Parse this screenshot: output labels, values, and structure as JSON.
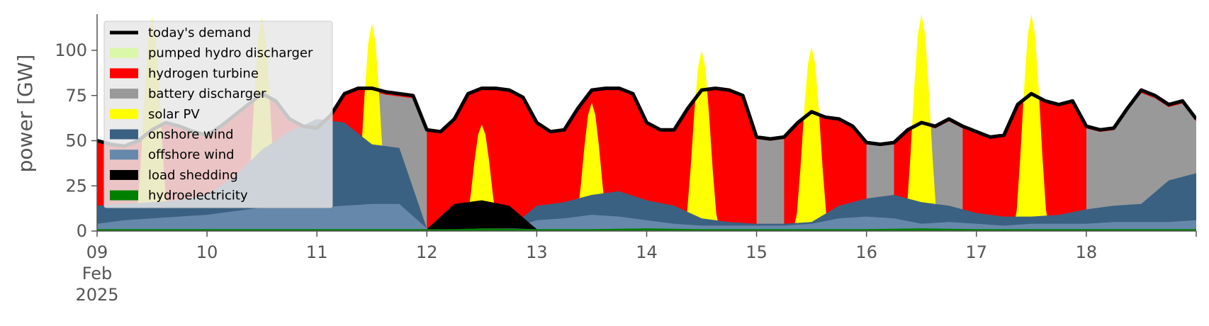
{
  "chart_data": {
    "type": "area",
    "ylabel": "power [GW]",
    "ylim": [
      0,
      120
    ],
    "yticks": [
      0,
      25,
      50,
      75,
      100
    ],
    "xlim": [
      "2025-02-09T00:00",
      "2025-02-19T00:00"
    ],
    "xtick_labels": [
      "09",
      "10",
      "11",
      "12",
      "13",
      "14",
      "15",
      "16",
      "17",
      "18"
    ],
    "xtick_month": "Feb",
    "xtick_year": "2025",
    "legend_position": "top-left",
    "x_hours": [
      0,
      6,
      12,
      18,
      24,
      30,
      36,
      42,
      48,
      54,
      60,
      66,
      72,
      78,
      84,
      90,
      96,
      102,
      108,
      114,
      120,
      126,
      132,
      138,
      144,
      150,
      156,
      162,
      168,
      174,
      180,
      186,
      192,
      198,
      204,
      210,
      216,
      222,
      228,
      234,
      240
    ],
    "series": [
      {
        "name": "hydroelectricity",
        "color": "#008000",
        "values": [
          1,
          1,
          1,
          1,
          1,
          1,
          1,
          1,
          1,
          1,
          1,
          1,
          1,
          1,
          1.5,
          1.5,
          1,
          1,
          1,
          1.5,
          1.5,
          1,
          1,
          1,
          1,
          1,
          1,
          1,
          1,
          1.5,
          1,
          1,
          1,
          1,
          1,
          1,
          1,
          1,
          1,
          1,
          1
        ]
      },
      {
        "name": "load shedding",
        "color": "#000000",
        "values": [
          0,
          0,
          0,
          0,
          0,
          0,
          0,
          0,
          0,
          0,
          0,
          0,
          0,
          0,
          0,
          0,
          0,
          0,
          0,
          0,
          0,
          0,
          0,
          0,
          0,
          0,
          0,
          0,
          0,
          0,
          0,
          0,
          0,
          0,
          0,
          0,
          0,
          0,
          0,
          0,
          0
        ]
      },
      {
        "name": "offshore wind",
        "color": "#6688aa",
        "values": [
          4,
          6,
          7,
          8,
          9,
          11,
          13,
          13,
          13,
          14,
          15,
          15,
          0,
          0,
          0,
          0,
          0,
          0,
          0,
          0,
          0,
          0,
          0,
          0,
          0,
          0,
          0,
          0,
          0,
          0,
          0,
          0,
          0,
          0,
          0,
          0,
          0,
          0,
          0,
          0,
          0
        ]
      },
      {
        "name": "onshore wind",
        "color": "#3b6182",
        "values": [
          14,
          15,
          16,
          17,
          20,
          30,
          45,
          45,
          42,
          33,
          32,
          32,
          0,
          0,
          0,
          0,
          0,
          0,
          0,
          0,
          0,
          0,
          0,
          0,
          0,
          0,
          0,
          0,
          0,
          0,
          0,
          0,
          0,
          0,
          0,
          0,
          0,
          0,
          0,
          0,
          0
        ]
      },
      {
        "name": "solar PV",
        "color": "#ffff00",
        "values": [
          0,
          0,
          0,
          0,
          0,
          0,
          0,
          0,
          0,
          0,
          0,
          0,
          0,
          0,
          0,
          0,
          0,
          0,
          0,
          0,
          0,
          0,
          0,
          0,
          0,
          0,
          0,
          0,
          0,
          0,
          0,
          0,
          0,
          0,
          0,
          0,
          0,
          0,
          0,
          0,
          0
        ]
      },
      {
        "name": "battery discharger",
        "color": "#999999",
        "values": [
          0,
          0,
          0,
          0,
          0,
          0,
          0,
          0,
          0,
          0,
          0,
          0,
          0,
          0,
          0,
          0,
          0,
          0,
          0,
          0,
          0,
          0,
          0,
          0,
          0,
          0,
          0,
          0,
          0,
          0,
          0,
          0,
          0,
          0,
          0,
          0,
          0,
          0,
          0,
          0,
          0
        ]
      },
      {
        "name": "hydrogen turbine",
        "color": "#ff0000",
        "values": [
          0,
          0,
          0,
          0,
          0,
          0,
          0,
          0,
          0,
          0,
          0,
          0,
          0,
          0,
          0,
          0,
          0,
          0,
          0,
          0,
          0,
          0,
          0,
          0,
          0,
          0,
          0,
          0,
          0,
          0,
          0,
          0,
          0,
          0,
          0,
          0,
          0,
          0,
          0,
          0,
          0
        ]
      },
      {
        "name": "pumped hydro discharger",
        "color": "#dbf7a8",
        "values": [
          0,
          0,
          0,
          0,
          0,
          0,
          0,
          0,
          0,
          0,
          0,
          0,
          0,
          0,
          0,
          0,
          0,
          0,
          0,
          0,
          0,
          0,
          0,
          0,
          0,
          0,
          0,
          0,
          0,
          0,
          0,
          0,
          0,
          0,
          0,
          0,
          0,
          0,
          0,
          0,
          0
        ]
      }
    ],
    "demand": {
      "name": "today's demand",
      "color": "#000000",
      "x_hours": [
        0,
        3,
        6,
        9,
        12,
        15,
        18,
        21,
        24,
        27,
        30,
        33,
        36,
        39,
        42,
        45,
        48,
        51,
        54,
        57,
        60,
        63,
        66,
        69,
        72,
        75,
        78,
        81,
        84,
        87,
        90,
        93,
        96,
        99,
        102,
        105,
        108,
        111,
        114,
        117,
        120,
        123,
        126,
        129,
        132,
        135,
        138,
        141,
        144,
        147,
        150,
        153,
        156,
        159,
        162,
        165,
        168,
        171,
        174,
        177,
        180,
        183,
        186,
        189,
        192,
        195,
        198,
        201,
        204,
        207,
        210,
        213,
        216,
        219,
        222,
        225,
        228,
        231,
        234,
        237,
        240
      ],
      "values": [
        50,
        48,
        47,
        50,
        56,
        60,
        58,
        55,
        53,
        58,
        64,
        70,
        76,
        72,
        62,
        58,
        57,
        64,
        76,
        79,
        79,
        77,
        76,
        75,
        56,
        55,
        62,
        76,
        79,
        79,
        78,
        74,
        60,
        55,
        56,
        68,
        78,
        79,
        79,
        76,
        60,
        56,
        56,
        68,
        78,
        79,
        78,
        75,
        52,
        51,
        52,
        60,
        66,
        63,
        62,
        58,
        49,
        48,
        49,
        56,
        60,
        58,
        62,
        58,
        55,
        52,
        53,
        70,
        76,
        72,
        70,
        72,
        58,
        56,
        57,
        68,
        78,
        75,
        70,
        72,
        62
      ]
    },
    "layers": [
      {
        "name": "hydroelectricity",
        "color": "#008000",
        "x": [
          0,
          24,
          48,
          60,
          72,
          84,
          96,
          108,
          120,
          132,
          144,
          156,
          168,
          180,
          192,
          204,
          216,
          228,
          240
        ],
        "top": [
          1,
          1,
          1,
          1,
          1,
          1.5,
          1,
          1,
          1.5,
          1,
          1,
          1,
          1,
          1.5,
          1,
          1,
          1,
          1,
          1
        ]
      },
      {
        "name": "load shedding",
        "color": "#000000",
        "x": [
          72,
          78,
          84,
          90,
          96
        ],
        "base": [
          1,
          1,
          1.5,
          1.5,
          1
        ],
        "top": [
          1,
          15,
          17,
          14,
          1
        ]
      },
      {
        "name": "offshore wind",
        "color": "#6688aa",
        "x": [
          0,
          6,
          12,
          18,
          24,
          30,
          36,
          42,
          48,
          54,
          60,
          66,
          72,
          78,
          84,
          90,
          96,
          102,
          108,
          114,
          120,
          126,
          132,
          138,
          144,
          150,
          156,
          162,
          168,
          174,
          180,
          186,
          192,
          198,
          204,
          210,
          216,
          222,
          228,
          234,
          240
        ],
        "top": [
          4,
          6,
          7,
          8,
          9,
          11,
          13,
          13,
          13,
          14,
          15,
          15,
          1.5,
          1.5,
          1.5,
          1.5,
          6,
          7,
          9,
          8,
          6,
          4,
          3,
          3,
          3,
          3,
          4,
          7,
          8,
          7,
          4,
          5,
          4,
          3,
          4,
          4,
          4,
          5,
          5,
          5,
          6
        ]
      },
      {
        "name": "onshore wind",
        "color": "#3b6182",
        "x": [
          0,
          6,
          12,
          18,
          24,
          30,
          36,
          42,
          48,
          54,
          60,
          66,
          72,
          78,
          84,
          90,
          96,
          102,
          108,
          114,
          120,
          126,
          132,
          138,
          144,
          150,
          156,
          162,
          168,
          174,
          180,
          186,
          192,
          198,
          204,
          210,
          216,
          222,
          228,
          234,
          240
        ],
        "top": [
          14,
          15,
          16,
          17,
          20,
          30,
          45,
          55,
          62,
          60,
          48,
          46,
          1.5,
          1.5,
          1.5,
          1.5,
          14,
          16,
          20,
          22,
          17,
          14,
          7,
          5,
          4,
          4,
          5,
          14,
          18,
          20,
          16,
          14,
          10,
          8,
          8,
          9,
          12,
          14,
          15,
          28,
          32
        ]
      }
    ]
  },
  "legend": {
    "items": [
      {
        "label": "today's demand",
        "kind": "line",
        "color": "#000000"
      },
      {
        "label": "pumped hydro discharger",
        "kind": "patch",
        "color": "#dbf7a8"
      },
      {
        "label": "hydrogen turbine",
        "kind": "patch",
        "color": "#ff0000"
      },
      {
        "label": "battery discharger",
        "kind": "patch",
        "color": "#999999"
      },
      {
        "label": "solar PV",
        "kind": "patch",
        "color": "#ffff00"
      },
      {
        "label": "onshore wind",
        "kind": "patch",
        "color": "#3b6182"
      },
      {
        "label": "offshore wind",
        "kind": "patch",
        "color": "#6688aa"
      },
      {
        "label": "load shedding",
        "kind": "patch",
        "color": "#000000"
      },
      {
        "label": "hydroelectricity",
        "kind": "patch",
        "color": "#008000"
      }
    ]
  }
}
